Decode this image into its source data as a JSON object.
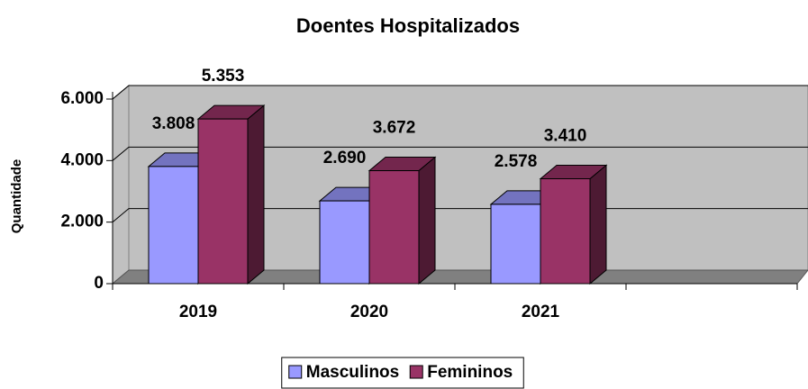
{
  "chart_data": {
    "type": "bar3d",
    "title": "Doentes Hospitalizados",
    "y_label": "Quantidade",
    "categories": [
      "2019",
      "2020",
      "2021",
      null
    ],
    "series": [
      {
        "name": "Masculinos",
        "color": "#9999ff",
        "values": [
          3808,
          2690,
          2578,
          null
        ],
        "value_labels": [
          "3.808",
          "2.690",
          "2.578",
          null
        ]
      },
      {
        "name": "Femininos",
        "color": "#993366",
        "values": [
          5353,
          3672,
          3410,
          null
        ],
        "value_labels": [
          "5.353",
          "3.672",
          "3.410",
          null
        ]
      }
    ],
    "ylim": [
      0,
      6000
    ],
    "yticks": [
      0,
      {
        "value": 2000,
        "label": "2.000"
      },
      {
        "value": 4000,
        "label": "4.000"
      },
      {
        "value": 6000,
        "label": "6.000"
      }
    ],
    "grid": true,
    "legend": "bottom"
  }
}
